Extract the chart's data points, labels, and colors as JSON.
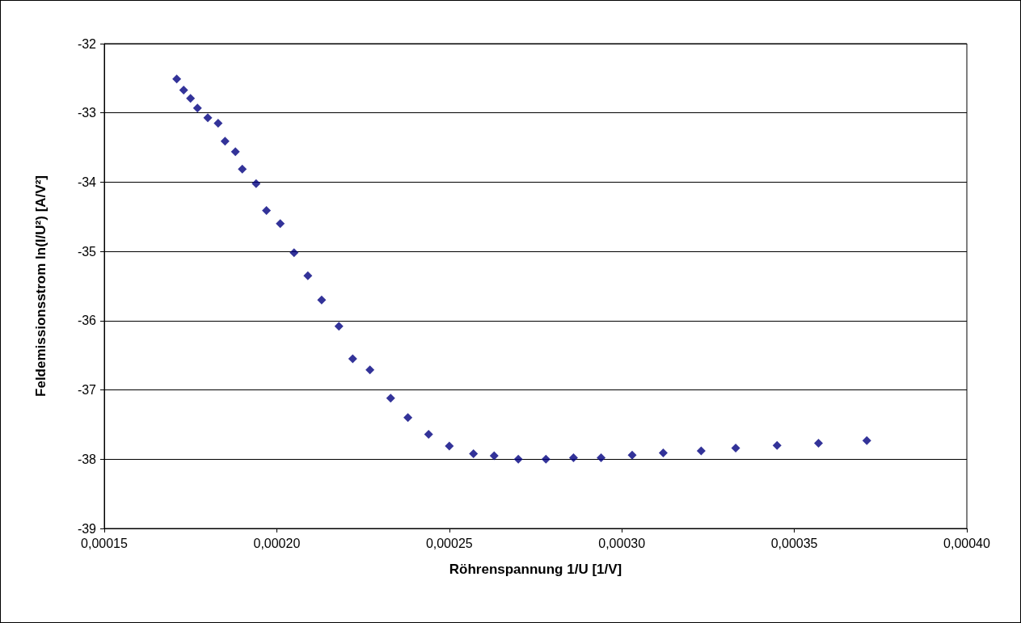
{
  "chart_data": {
    "type": "scatter",
    "xlabel": "Röhrenspannung 1/U [1/V]",
    "ylabel": "Feldemissionsstrom ln(I/U²) [A/V²]",
    "x": [
      0.000171,
      0.000173,
      0.000175,
      0.000177,
      0.00018,
      0.000183,
      0.000185,
      0.000188,
      0.00019,
      0.000194,
      0.000197,
      0.000201,
      0.000205,
      0.000209,
      0.000213,
      0.000218,
      0.000222,
      0.000227,
      0.000233,
      0.000238,
      0.000244,
      0.00025,
      0.000257,
      0.000263,
      0.00027,
      0.000278,
      0.000286,
      0.000294,
      0.000303,
      0.000312,
      0.000323,
      0.000333,
      0.000345,
      0.000357,
      0.000371
    ],
    "series": [
      {
        "color": "#000080",
        "values": [
          -32.51,
          -32.67,
          -32.79,
          -32.93,
          -33.07,
          -33.15,
          -33.41,
          -33.56,
          -33.81,
          -34.02,
          -34.41,
          -34.6,
          -35.02,
          -35.35,
          -35.7,
          -36.08,
          -36.55,
          -36.71,
          -37.12,
          -37.4,
          -37.64,
          -37.81,
          -37.92,
          -37.95,
          -38.0,
          -38.0,
          -37.98,
          -37.98,
          -37.94,
          -37.91,
          -37.88,
          -37.84,
          -37.8,
          -37.77,
          -37.73
        ]
      }
    ],
    "xlim": [
      0.00015,
      0.0004
    ],
    "xticks": [
      {
        "value": 0.00015,
        "label": "0,00015"
      },
      {
        "value": 0.0002,
        "label": "0,00020"
      },
      {
        "value": 0.00025,
        "label": "0,00025"
      },
      {
        "value": 0.0003,
        "label": "0,00030"
      },
      {
        "value": 0.00035,
        "label": "0,00035"
      },
      {
        "value": 0.0004,
        "label": "0,00040"
      }
    ],
    "ylim": [
      -39,
      -32
    ],
    "yticks": [
      -39,
      -38,
      -37,
      -36,
      -35,
      -34,
      -33,
      -32
    ],
    "grid": "y",
    "marker": "diamond"
  }
}
